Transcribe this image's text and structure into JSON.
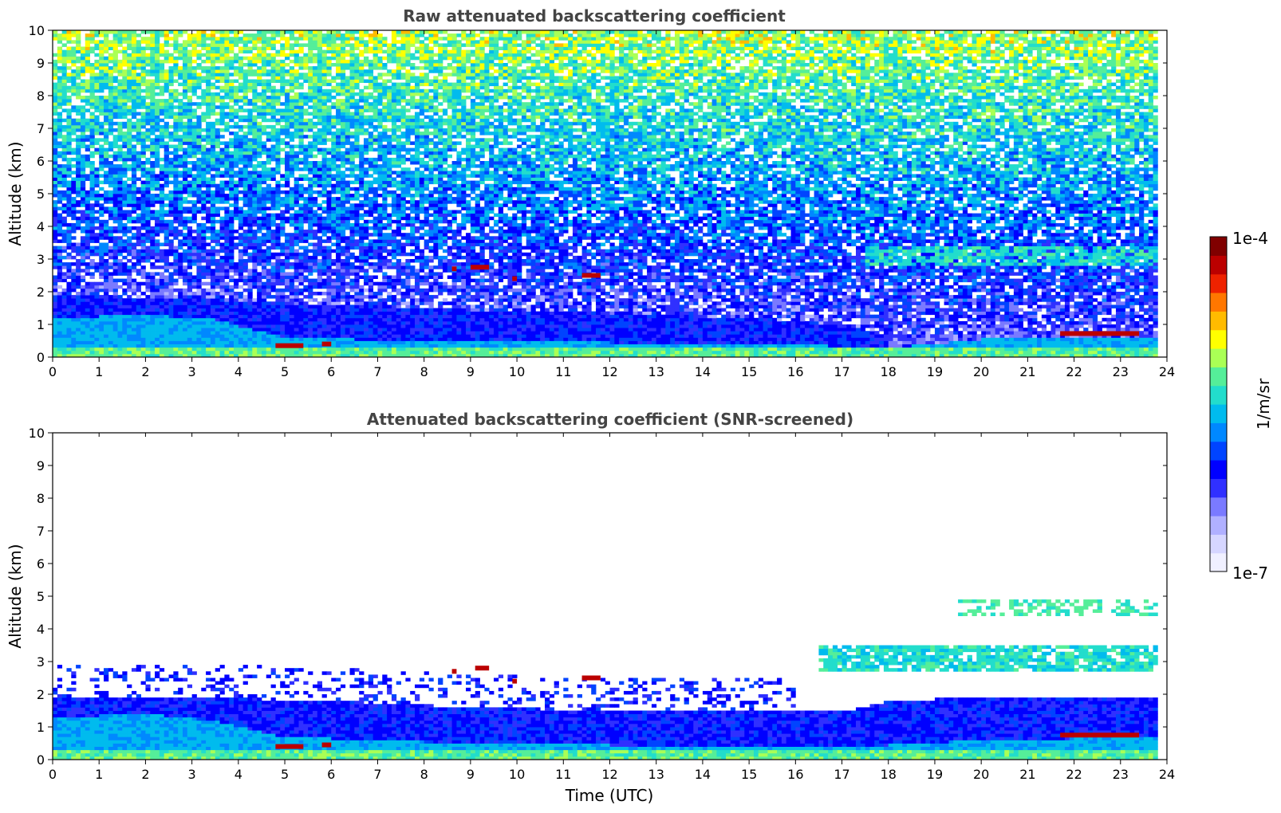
{
  "colormap": [
    "#f0f0ff",
    "#d6d6ff",
    "#b0b0ff",
    "#7a7aff",
    "#3030ff",
    "#0000ff",
    "#0044ff",
    "#0088ff",
    "#00bbee",
    "#22ddcc",
    "#55ee99",
    "#aaff55",
    "#ffff00",
    "#ffbb00",
    "#ff7700",
    "#ee2200",
    "#bb0000",
    "#800000"
  ],
  "colorbar": {
    "label": "1/m/sr",
    "tick_labels": [
      "1e-4",
      "1e-7"
    ],
    "scale": "log",
    "range": [
      "1e-7",
      "1e-4"
    ]
  },
  "chart_data": [
    {
      "type": "heatmap",
      "title": "Raw attenuated backscattering coefficient",
      "xlabel": "",
      "ylabel": "Altitude (km)",
      "xlim": [
        0,
        24
      ],
      "ylim": [
        0,
        10
      ],
      "x_ticks": [
        "0",
        "1",
        "2",
        "3",
        "4",
        "5",
        "6",
        "7",
        "8",
        "9",
        "10",
        "11",
        "12",
        "13",
        "14",
        "15",
        "16",
        "17",
        "18",
        "19",
        "20",
        "21",
        "22",
        "23",
        "24"
      ],
      "y_ticks": [
        "0",
        "1",
        "2",
        "3",
        "4",
        "5",
        "6",
        "7",
        "8",
        "9",
        "10"
      ],
      "data_end_time": 23.8,
      "variant": "raw",
      "boundary_layer_top_km": [
        [
          0,
          1.9
        ],
        [
          3,
          1.8
        ],
        [
          6,
          1.6
        ],
        [
          9,
          1.45
        ],
        [
          12,
          1.35
        ],
        [
          15,
          1.2
        ],
        [
          17,
          1.0
        ],
        [
          18,
          0.7
        ],
        [
          20,
          0.75
        ],
        [
          22,
          0.8
        ],
        [
          23.8,
          0.8
        ]
      ],
      "dense_aerosol_top_km": [
        [
          0,
          1.2
        ],
        [
          2,
          1.3
        ],
        [
          3.5,
          1.15
        ],
        [
          5,
          0.6
        ],
        [
          8,
          0.5
        ],
        [
          12,
          0.45
        ],
        [
          16,
          0.4
        ],
        [
          17.5,
          0.3
        ],
        [
          18.5,
          0.35
        ],
        [
          20,
          0.55
        ],
        [
          23.8,
          0.6
        ]
      ],
      "cloud_layers": [
        {
          "t0": 4.8,
          "t1": 5.4,
          "h": 0.35,
          "label": "low cloud"
        },
        {
          "t0": 5.8,
          "t1": 6.0,
          "h": 0.4,
          "label": "low cloud"
        },
        {
          "t0": 8.6,
          "t1": 8.7,
          "h": 2.7,
          "label": "cloud"
        },
        {
          "t0": 9.0,
          "t1": 9.4,
          "h": 2.75,
          "label": "cloud"
        },
        {
          "t0": 9.9,
          "t1": 10.0,
          "h": 2.4,
          "label": "cloud"
        },
        {
          "t0": 11.4,
          "t1": 11.8,
          "h": 2.5,
          "label": "cloud"
        },
        {
          "t0": 21.7,
          "t1": 23.4,
          "h": 0.72,
          "label": "low cloud"
        }
      ],
      "elevated_layer": {
        "t0": 17.5,
        "t1": 23.8,
        "h_bottom": 2.8,
        "h_top": 3.4
      }
    },
    {
      "type": "heatmap",
      "title": "Attenuated backscattering coefficient (SNR-screened)",
      "xlabel": "Time (UTC)",
      "ylabel": "Altitude (km)",
      "xlim": [
        0,
        24
      ],
      "ylim": [
        0,
        10
      ],
      "x_ticks": [
        "0",
        "1",
        "2",
        "3",
        "4",
        "5",
        "6",
        "7",
        "8",
        "9",
        "10",
        "11",
        "12",
        "13",
        "14",
        "15",
        "16",
        "17",
        "18",
        "19",
        "20",
        "21",
        "22",
        "23",
        "24"
      ],
      "y_ticks": [
        "0",
        "1",
        "2",
        "3",
        "4",
        "5",
        "6",
        "7",
        "8",
        "9",
        "10"
      ],
      "data_end_time": 23.8,
      "variant": "screened",
      "boundary_layer_top_km": [
        [
          0,
          1.95
        ],
        [
          3,
          1.9
        ],
        [
          6,
          1.8
        ],
        [
          9,
          1.6
        ],
        [
          12,
          1.5
        ],
        [
          15,
          1.55
        ],
        [
          17,
          1.45
        ],
        [
          18,
          1.8
        ],
        [
          20,
          1.9
        ],
        [
          22,
          1.9
        ],
        [
          23.8,
          1.9
        ]
      ],
      "dense_aerosol_top_km": [
        [
          0,
          1.3
        ],
        [
          2,
          1.4
        ],
        [
          3.5,
          1.2
        ],
        [
          5,
          0.7
        ],
        [
          8,
          0.55
        ],
        [
          12,
          0.45
        ],
        [
          16,
          0.4
        ],
        [
          17.5,
          0.4
        ],
        [
          18.5,
          0.5
        ],
        [
          20,
          0.6
        ],
        [
          23.8,
          0.7
        ]
      ],
      "cloud_layers": [
        {
          "t0": 4.8,
          "t1": 5.4,
          "h": 0.4,
          "label": "low cloud"
        },
        {
          "t0": 5.8,
          "t1": 6.0,
          "h": 0.45,
          "label": "low cloud"
        },
        {
          "t0": 8.6,
          "t1": 8.7,
          "h": 2.7,
          "label": "cloud"
        },
        {
          "t0": 9.1,
          "t1": 9.4,
          "h": 2.8,
          "label": "cloud"
        },
        {
          "t0": 9.9,
          "t1": 10.0,
          "h": 2.4,
          "label": "cloud"
        },
        {
          "t0": 11.4,
          "t1": 11.8,
          "h": 2.5,
          "label": "cloud"
        },
        {
          "t0": 21.7,
          "t1": 23.4,
          "h": 0.75,
          "label": "low cloud"
        }
      ],
      "elevated_layer": {
        "t0": 16.5,
        "t1": 23.8,
        "h_bottom": 2.7,
        "h_top": 3.5
      },
      "upper_layer": {
        "t0": 19.5,
        "t1": 23.8,
        "h_bottom": 4.4,
        "h_top": 4.9
      }
    }
  ]
}
